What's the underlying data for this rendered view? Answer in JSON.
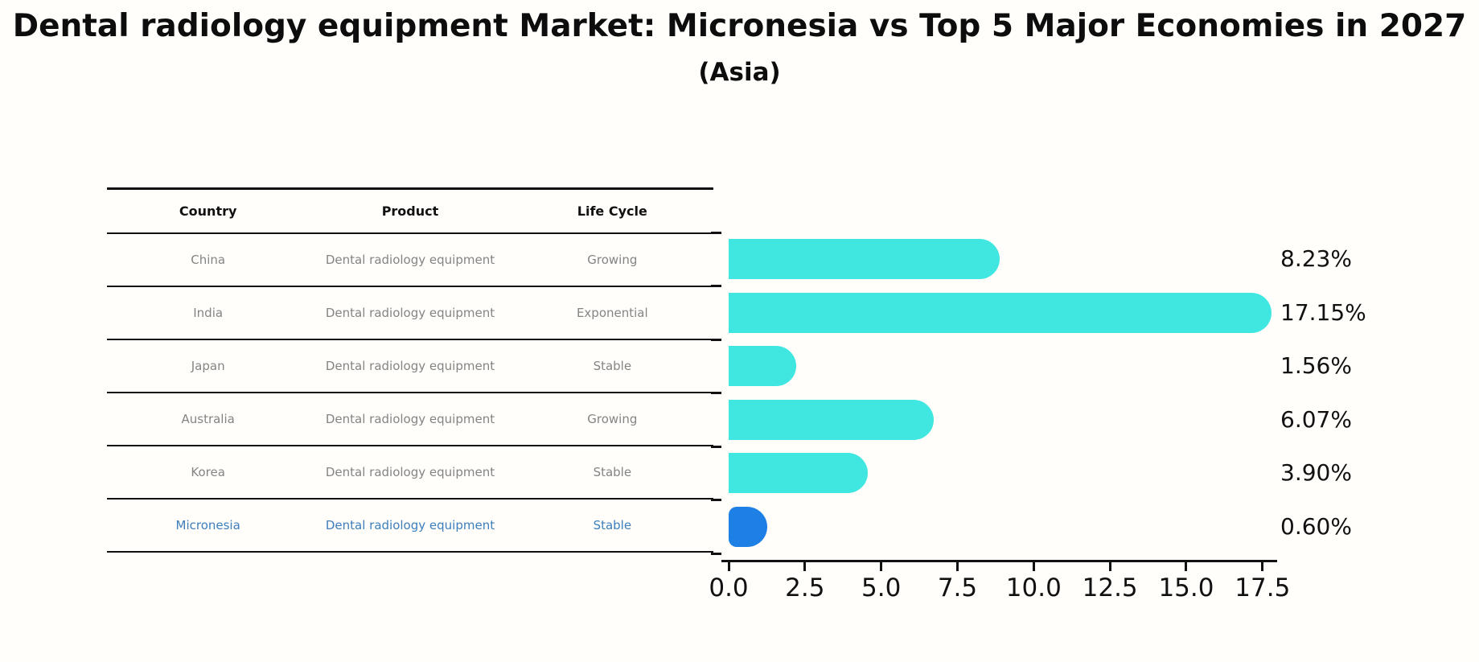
{
  "title": "Dental radiology equipment Market: Micronesia vs Top 5 Major Economies in 2027",
  "subtitle": "(Asia)",
  "table": {
    "headers": [
      "Country",
      "Product",
      "Life Cycle"
    ],
    "rows": [
      {
        "country": "China",
        "product": "Dental radiology equipment",
        "life_cycle": "Growing",
        "highlight": false
      },
      {
        "country": "India",
        "product": "Dental radiology equipment",
        "life_cycle": "Exponential",
        "highlight": false
      },
      {
        "country": "Japan",
        "product": "Dental radiology equipment",
        "life_cycle": "Stable",
        "highlight": false
      },
      {
        "country": "Australia",
        "product": "Dental radiology equipment",
        "life_cycle": "Growing",
        "highlight": false
      },
      {
        "country": "Korea",
        "product": "Dental radiology equipment",
        "life_cycle": "Stable",
        "highlight": false
      },
      {
        "country": "Micronesia",
        "product": "Dental radiology equipment",
        "life_cycle": "Stable",
        "highlight": true
      }
    ]
  },
  "chart_data": {
    "type": "bar",
    "orientation": "horizontal",
    "title": "Dental radiology equipment Market: Micronesia vs Top 5 Major Economies in 2027 (Asia)",
    "categories": [
      "China",
      "India",
      "Japan",
      "Australia",
      "Korea",
      "Micronesia"
    ],
    "values": [
      8.23,
      17.15,
      1.56,
      6.07,
      3.9,
      0.6
    ],
    "value_labels": [
      "8.23%",
      "17.15%",
      "1.56%",
      "6.07%",
      "3.90%",
      "0.60%"
    ],
    "xlim": [
      0,
      18
    ],
    "x_tick_labels": [
      "0.0",
      "2.5",
      "5.0",
      "7.5",
      "10.0",
      "12.5",
      "15.0",
      "17.5"
    ],
    "grid": false,
    "legend": false,
    "bar_color": "#40e6e0",
    "highlight_color": "#1e80e5",
    "highlight_index": 5
  },
  "colors": {
    "background": "#fffefa",
    "text": "#0d0d0d",
    "table_text": "#848484",
    "highlight_text": "#3d7ebd",
    "axis": "#111111"
  }
}
